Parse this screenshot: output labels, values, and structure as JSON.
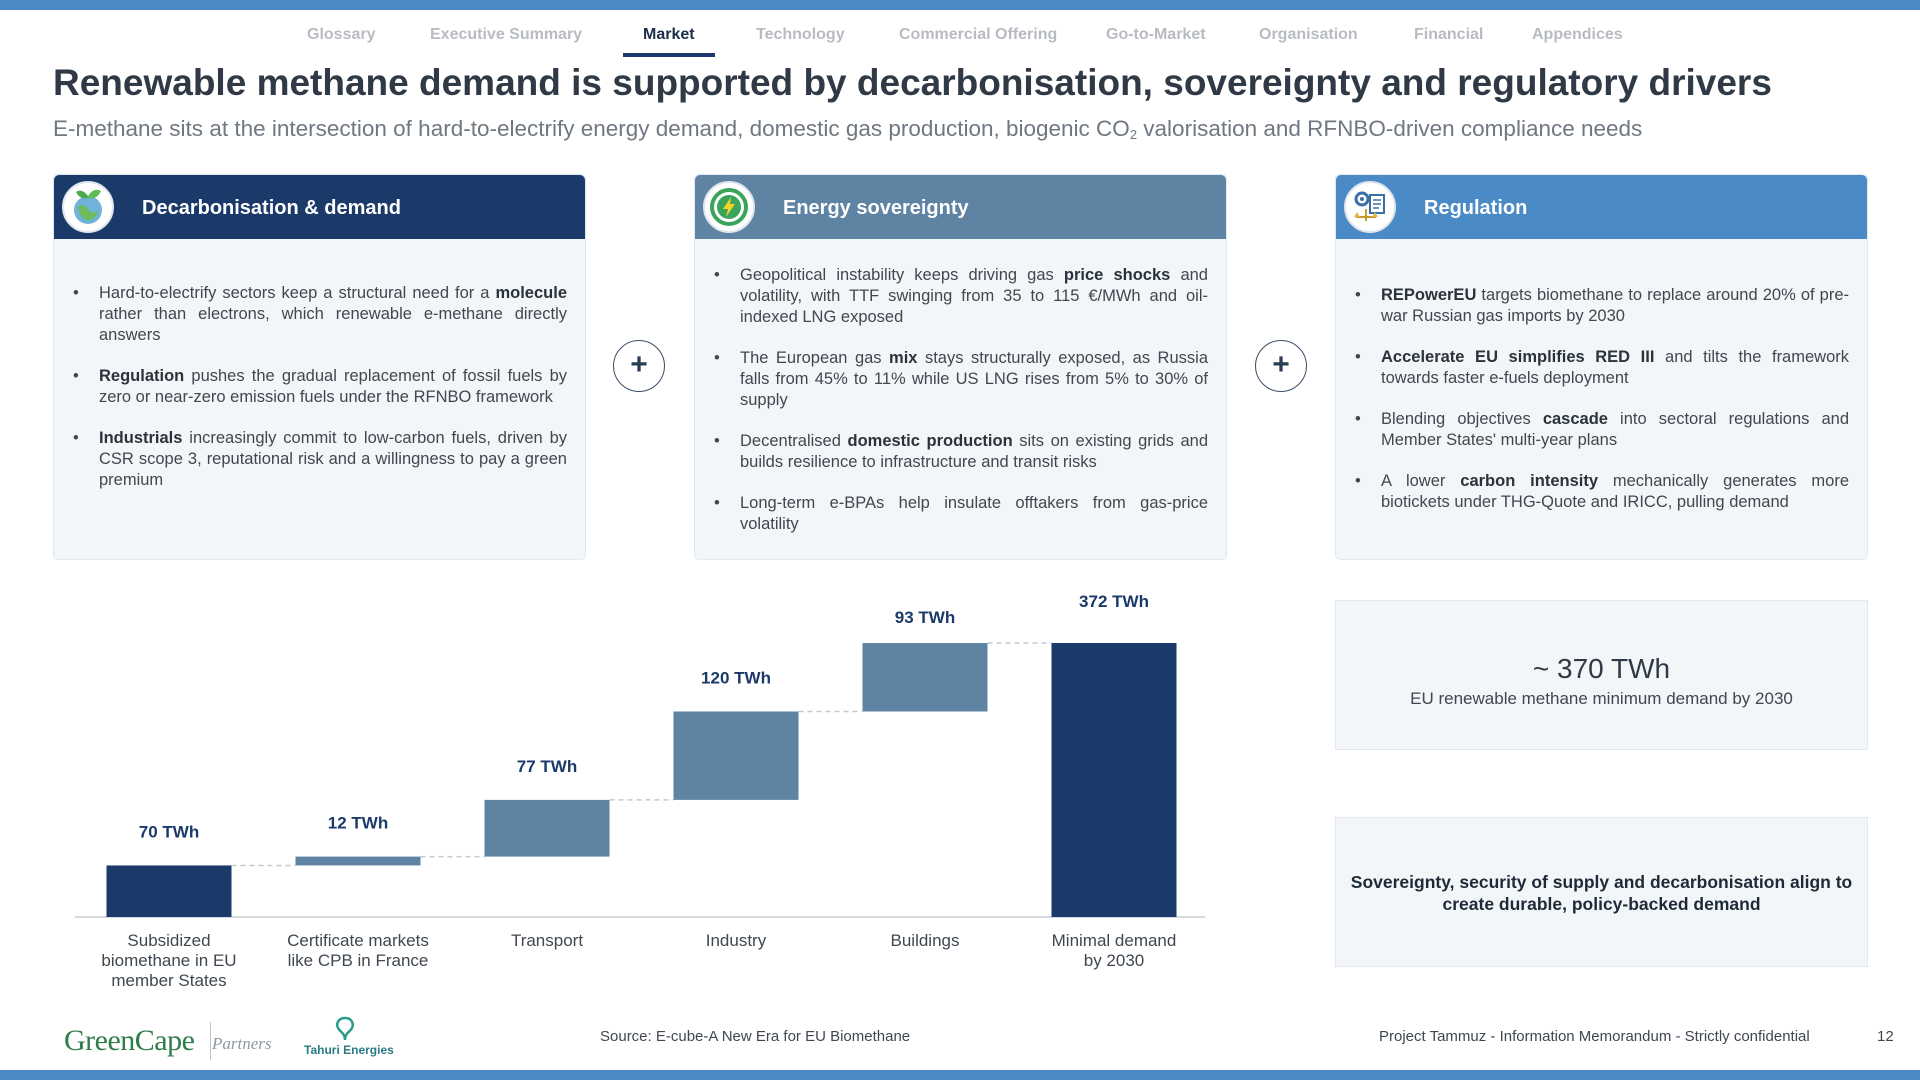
{
  "nav": {
    "tabs": [
      {
        "label": "Glossary",
        "active": false
      },
      {
        "label": "Executive Summary",
        "active": false
      },
      {
        "label": "Market",
        "active": true
      },
      {
        "label": "Technology",
        "active": false
      },
      {
        "label": "Commercial Offering",
        "active": false
      },
      {
        "label": "Go-to-Market",
        "active": false
      },
      {
        "label": "Organisation",
        "active": false
      },
      {
        "label": "Financial",
        "active": false
      },
      {
        "label": "Appendices",
        "active": false
      }
    ]
  },
  "header": {
    "title": "Renewable methane demand is supported by decarbonisation, sovereignty and regulatory drivers",
    "subtitle_pre": "E-methane sits at the intersection of hard-to-electrify energy demand, domestic gas production, biogenic CO",
    "subtitle_sub": "2",
    "subtitle_post": " valorisation and RFNBO-driven compliance needs"
  },
  "cards": [
    {
      "title": "Decarbonisation & demand",
      "icon": "globe-leaf-icon",
      "header_color": "#1b3a6a",
      "bullets": [
        {
          "pre": "Hard-to-electrify sectors keep a structural need for a ",
          "bold": "molecule",
          "post": " rather than electrons, which renewable e-methane directly answers"
        },
        {
          "pre": "",
          "bold": "Regulation",
          "post": " pushes the gradual replacement of fossil fuels by zero or near-zero emission fuels under the RFNBO framework"
        },
        {
          "pre": "",
          "bold": "Industrials",
          "post": " increasingly commit to low-carbon fuels, driven by CSR scope 3, reputational risk and a willingness to pay a green premium"
        }
      ]
    },
    {
      "title": "Energy sovereignty",
      "icon": "lightning-icon",
      "header_color": "#5f83a3",
      "bullets": [
        {
          "pre": "Geopolitical instability keeps driving gas ",
          "bold": "price shocks",
          "post": " and volatility, with TTF swinging from 35 to 115 €/MWh and oil-indexed LNG exposed"
        },
        {
          "pre": "The European gas ",
          "bold": "mix",
          "post": " stays structurally exposed, as Russia falls from 45% to 11% while US LNG rises from 5% to 30% of supply"
        },
        {
          "pre": "Decentralised ",
          "bold": "domestic production",
          "post": " sits on existing grids and builds resilience to infrastructure and transit risks"
        },
        {
          "pre": "Long-term e-BPAs help insulate offtakers from gas-price volatility",
          "bold": "",
          "post": ""
        }
      ]
    },
    {
      "title": "Regulation",
      "icon": "regulation-scales-icon",
      "header_color": "#4a8ac6",
      "bullets": [
        {
          "pre": "",
          "bold": "REPowerEU",
          "post": " targets biomethane to replace around 20% of pre-war Russian gas imports by 2030"
        },
        {
          "pre": "",
          "bold": "Accelerate EU simplifies RED III",
          "post": " and tilts the framework towards faster e-fuels deployment"
        },
        {
          "pre": "Blending objectives ",
          "bold": "cascade",
          "post": " into sectoral regulations and Member States' multi-year plans"
        },
        {
          "pre": "A lower ",
          "bold": "carbon intensity",
          "post": " mechanically generates more biotickets under THG-Quote and IRICC, pulling demand"
        }
      ]
    }
  ],
  "plus_symbol": "+",
  "chart_data": {
    "type": "bar",
    "subtype": "waterfall",
    "unit": "TWh",
    "categories": [
      "Subsidized biomethane in EU member States",
      "Certificate markets like CPB in France",
      "Transport",
      "Industry",
      "Buildings",
      "Minimal demand by 2030"
    ],
    "category_lines": [
      [
        "Subsidized",
        "biomethane in EU",
        "member States"
      ],
      [
        "Certificate markets",
        "like CPB in France"
      ],
      [
        "Transport"
      ],
      [
        "Industry"
      ],
      [
        "Buildings"
      ],
      [
        "Minimal demand",
        "by 2030"
      ]
    ],
    "values": [
      70,
      12,
      77,
      120,
      93,
      372
    ],
    "data_labels": [
      "70 TWh",
      "12 TWh",
      "77 TWh",
      "120 TWh",
      "93 TWh",
      "372 TWh"
    ],
    "bar_kind": [
      "total",
      "increment",
      "increment",
      "increment",
      "increment",
      "total"
    ],
    "colors": {
      "total": "#1b3a6a",
      "increment": "#5f83a3",
      "label": "#1b3a6a",
      "connector": "#c3cad2",
      "axis": "#d5d9de"
    },
    "ylim": [
      0,
      372
    ]
  },
  "kpi": {
    "value": "~ 370 TWh",
    "label": "EU renewable methane minimum demand by 2030"
  },
  "conclusion": "Sovereignty, security of supply and decarbonisation align to create durable, policy-backed demand",
  "footer": {
    "logo_greencape": "GreenCape",
    "logo_partners": "Partners",
    "logo_tahuri": "Tahuri Energies",
    "source": "Source: E-cube-A New Era for EU Biomethane",
    "confidential": "Project Tammuz - Information Memorandum - Strictly confidential",
    "page_number": "12"
  },
  "colors": {
    "accent": "#4a8ac6",
    "navy": "#1b3a6a",
    "steel": "#5f83a3"
  }
}
